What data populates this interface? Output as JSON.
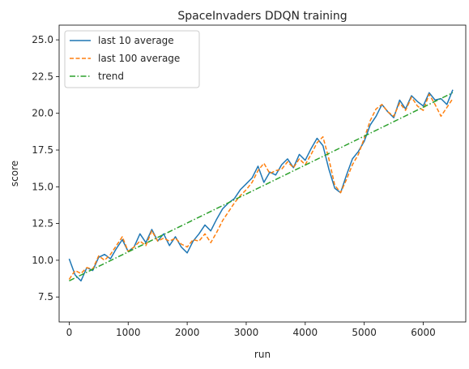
{
  "chart_data": {
    "type": "line",
    "title": "SpaceInvaders DDQN training",
    "xlabel": "run",
    "ylabel": "score",
    "xlim": [
      -170,
      6720
    ],
    "ylim": [
      5.8,
      26.0
    ],
    "xticks": [
      0,
      1000,
      2000,
      3000,
      4000,
      5000,
      6000
    ],
    "yticks": [
      7.5,
      10.0,
      12.5,
      15.0,
      17.5,
      20.0,
      22.5,
      25.0
    ],
    "ytick_labels": [
      "7.5",
      "10.0",
      "12.5",
      "15.0",
      "17.5",
      "20.0",
      "22.5",
      "25.0"
    ],
    "grid": false,
    "legend": "upper-left",
    "series": [
      {
        "name": "last 10 average",
        "color": "#1f77b4",
        "style": "solid",
        "x": [
          0,
          100,
          200,
          300,
          400,
          500,
          600,
          700,
          800,
          900,
          1000,
          1100,
          1200,
          1300,
          1400,
          1500,
          1600,
          1700,
          1800,
          1900,
          2000,
          2100,
          2200,
          2300,
          2400,
          2500,
          2600,
          2700,
          2800,
          2900,
          3000,
          3100,
          3200,
          3300,
          3400,
          3500,
          3600,
          3700,
          3800,
          3900,
          4000,
          4100,
          4200,
          4300,
          4400,
          4500,
          4600,
          4700,
          4800,
          4900,
          5000,
          5100,
          5200,
          5300,
          5400,
          5500,
          5600,
          5700,
          5800,
          5900,
          6000,
          6100,
          6200,
          6300,
          6400,
          6500
        ],
        "y": [
          10.1,
          9.0,
          8.6,
          9.5,
          9.3,
          10.2,
          10.4,
          10.1,
          10.8,
          11.4,
          10.6,
          10.9,
          11.8,
          11.2,
          12.1,
          11.3,
          11.8,
          11.0,
          11.6,
          10.9,
          10.5,
          11.3,
          11.8,
          12.4,
          12.0,
          12.8,
          13.5,
          13.9,
          14.2,
          14.8,
          15.2,
          15.6,
          16.4,
          15.3,
          16.0,
          15.8,
          16.5,
          16.9,
          16.3,
          17.2,
          16.8,
          17.6,
          18.3,
          17.8,
          16.2,
          14.9,
          14.6,
          15.8,
          16.9,
          17.4,
          18.1,
          19.2,
          19.8,
          20.6,
          20.1,
          19.7,
          20.9,
          20.3,
          21.2,
          20.8,
          20.5,
          21.4,
          20.9,
          21.0,
          20.6,
          21.6
        ]
      },
      {
        "name": "last 100 average",
        "color": "#ff7f0e",
        "style": "dashed",
        "x": [
          0,
          100,
          200,
          300,
          400,
          500,
          600,
          700,
          800,
          900,
          1000,
          1100,
          1200,
          1300,
          1400,
          1500,
          1600,
          1700,
          1800,
          1900,
          2000,
          2100,
          2200,
          2300,
          2400,
          2500,
          2600,
          2700,
          2800,
          2900,
          3000,
          3100,
          3200,
          3300,
          3400,
          3500,
          3600,
          3700,
          3800,
          3900,
          4000,
          4100,
          4200,
          4300,
          4400,
          4500,
          4600,
          4700,
          4800,
          4900,
          5000,
          5100,
          5200,
          5300,
          5400,
          5500,
          5600,
          5700,
          5800,
          5900,
          6000,
          6100,
          6200,
          6300,
          6400,
          6500
        ],
        "y": [
          8.7,
          9.3,
          9.1,
          9.5,
          9.4,
          10.3,
          10.0,
          10.4,
          11.0,
          11.6,
          10.6,
          10.9,
          11.3,
          11.0,
          12.0,
          11.3,
          11.5,
          11.3,
          11.5,
          11.1,
          10.9,
          11.4,
          11.3,
          11.8,
          11.2,
          11.9,
          12.7,
          13.3,
          13.9,
          14.4,
          14.8,
          15.3,
          16.1,
          16.6,
          15.9,
          16.1,
          16.2,
          16.7,
          16.3,
          16.9,
          16.5,
          17.2,
          18.0,
          18.4,
          16.9,
          15.1,
          14.6,
          15.5,
          16.5,
          17.2,
          18.3,
          19.5,
          20.3,
          20.6,
          20.1,
          19.8,
          20.7,
          20.2,
          21.1,
          20.5,
          20.2,
          21.3,
          20.6,
          19.8,
          20.4,
          21.0
        ]
      },
      {
        "name": "trend",
        "color": "#2ca02c",
        "style": "dashdot",
        "x": [
          0,
          6500
        ],
        "y": [
          8.6,
          21.4
        ]
      }
    ]
  }
}
